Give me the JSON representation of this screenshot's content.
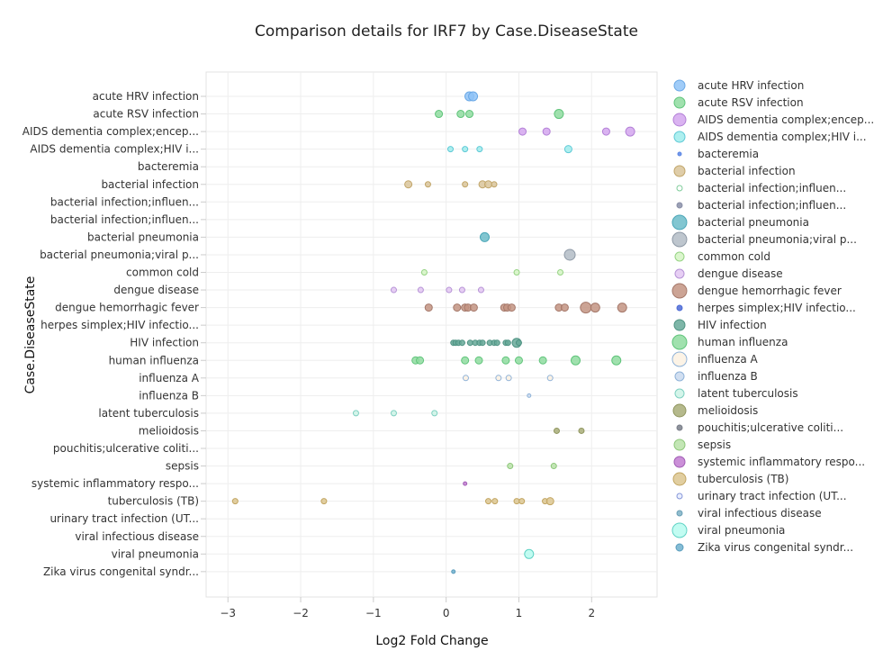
{
  "chart_data": {
    "type": "scatter",
    "title": "Comparison details for IRF7 by Case.DiseaseState",
    "xlabel": "Log2 Fold Change",
    "ylabel": "Case.DiseaseState",
    "xlim": [
      -3.3,
      2.9
    ],
    "xticks": [
      -3,
      -2,
      -1,
      0,
      1,
      2
    ],
    "xtick_labels": [
      "−3",
      "−2",
      "−1",
      "0",
      "1",
      "2"
    ],
    "grid": true,
    "legend_position": "right",
    "categories": [
      "acute HRV infection",
      "acute RSV infection",
      "AIDS dementia complex;encep...",
      "AIDS dementia complex;HIV i...",
      "bacteremia",
      "bacterial infection",
      "bacterial infection;influen...",
      "bacterial infection;influen...",
      "bacterial pneumonia",
      "bacterial pneumonia;viral p...",
      "common cold",
      "dengue disease",
      "dengue hemorrhagic fever",
      "herpes simplex;HIV infectio...",
      "HIV infection",
      "human influenza",
      "influenza A",
      "influenza B",
      "latent tuberculosis",
      "melioidosis",
      "pouchitis;ulcerative coliti...",
      "sepsis",
      "systemic inflammatory respo...",
      "tuberculosis (TB)",
      "urinary tract infection (UT...",
      "viral infectious disease",
      "viral pneumonia",
      "Zika virus congenital syndr..."
    ],
    "series": [
      {
        "name": "acute HRV infection",
        "color": "#8fc3f7",
        "stroke": "#6aa8e6",
        "size": 5,
        "points": [
          {
            "x": 0.32,
            "y": 0
          },
          {
            "x": 0.37,
            "y": 0
          }
        ]
      },
      {
        "name": "acute RSV infection",
        "color": "#8fdca0",
        "stroke": "#5fc47a",
        "size": 4,
        "points": [
          {
            "x": -0.1,
            "y": 1
          },
          {
            "x": 0.2,
            "y": 1
          },
          {
            "x": 0.32,
            "y": 1
          },
          {
            "x": 1.55,
            "y": 1,
            "s": 5
          }
        ]
      },
      {
        "name": "AIDS dementia complex;encep...",
        "color": "#d4a6ef",
        "stroke": "#b27fd6",
        "size": 4,
        "points": [
          {
            "x": 1.05,
            "y": 2
          },
          {
            "x": 1.38,
            "y": 2
          },
          {
            "x": 2.2,
            "y": 2
          },
          {
            "x": 2.53,
            "y": 2,
            "s": 5
          }
        ]
      },
      {
        "name": "AIDS dementia complex;HIV i...",
        "color": "#9fecec",
        "stroke": "#5fc9d6",
        "size": 3,
        "points": [
          {
            "x": 0.06,
            "y": 3
          },
          {
            "x": 0.26,
            "y": 3
          },
          {
            "x": 0.46,
            "y": 3
          },
          {
            "x": 1.68,
            "y": 3,
            "s": 4
          }
        ]
      },
      {
        "name": "bacteremia",
        "color": "#5b86e5",
        "stroke": "#5b86e5",
        "size": 3,
        "points": []
      },
      {
        "name": "bacterial infection",
        "color": "#d9c49a",
        "stroke": "#c1a568",
        "size": 3,
        "points": [
          {
            "x": -0.52,
            "y": 5,
            "s": 4
          },
          {
            "x": -0.25,
            "y": 5
          },
          {
            "x": 0.26,
            "y": 5
          },
          {
            "x": 0.5,
            "y": 5,
            "s": 4
          },
          {
            "x": 0.58,
            "y": 5,
            "s": 4
          },
          {
            "x": 0.66,
            "y": 5
          }
        ]
      },
      {
        "name": "bacterial infection;influen...",
        "color": "#ffffff",
        "stroke": "#7fcc9a",
        "size": 3,
        "points": []
      },
      {
        "name": "bacterial infection;influen...",
        "color": "#8a8fa8",
        "stroke": "#8a8fa8",
        "size": 3,
        "points": []
      },
      {
        "name": "bacterial pneumonia",
        "color": "#6cbcc9",
        "stroke": "#4aa6b7",
        "size": 5,
        "points": [
          {
            "x": 0.53,
            "y": 8
          }
        ]
      },
      {
        "name": "bacterial pneumonia;viral p...",
        "color": "#b3bcc6",
        "stroke": "#8d98a5",
        "size": 6,
        "points": [
          {
            "x": 1.7,
            "y": 9
          }
        ]
      },
      {
        "name": "common cold",
        "color": "#d5f4c4",
        "stroke": "#96d384",
        "size": 3,
        "points": [
          {
            "x": -0.3,
            "y": 10
          },
          {
            "x": 0.97,
            "y": 10
          },
          {
            "x": 1.57,
            "y": 10
          }
        ]
      },
      {
        "name": "dengue disease",
        "color": "#e3c7f2",
        "stroke": "#b693d6",
        "size": 3,
        "points": [
          {
            "x": -0.72,
            "y": 11
          },
          {
            "x": -0.35,
            "y": 11
          },
          {
            "x": 0.04,
            "y": 11
          },
          {
            "x": 0.22,
            "y": 11
          },
          {
            "x": 0.48,
            "y": 11
          }
        ]
      },
      {
        "name": "dengue hemorrhagic fever",
        "color": "#c39482",
        "stroke": "#a5786a",
        "size": 4,
        "points": [
          {
            "x": -0.24,
            "y": 12
          },
          {
            "x": 0.15,
            "y": 12
          },
          {
            "x": 0.26,
            "y": 12
          },
          {
            "x": 0.3,
            "y": 12
          },
          {
            "x": 0.38,
            "y": 12
          },
          {
            "x": 0.8,
            "y": 12
          },
          {
            "x": 0.84,
            "y": 12
          },
          {
            "x": 0.9,
            "y": 12
          },
          {
            "x": 1.55,
            "y": 12
          },
          {
            "x": 1.63,
            "y": 12
          },
          {
            "x": 1.92,
            "y": 12,
            "s": 6
          },
          {
            "x": 2.05,
            "y": 12,
            "s": 5
          },
          {
            "x": 2.42,
            "y": 12,
            "s": 5
          }
        ]
      },
      {
        "name": "herpes simplex;HIV infectio...",
        "color": "#4d6bd6",
        "stroke": "#4d6bd6",
        "size": 2,
        "points": []
      },
      {
        "name": "HIV infection",
        "color": "#67a999",
        "stroke": "#4f9383",
        "size": 3,
        "points": [
          {
            "x": 0.1,
            "y": 14
          },
          {
            "x": 0.13,
            "y": 14
          },
          {
            "x": 0.17,
            "y": 14
          },
          {
            "x": 0.22,
            "y": 14
          },
          {
            "x": 0.33,
            "y": 14
          },
          {
            "x": 0.4,
            "y": 14
          },
          {
            "x": 0.46,
            "y": 14
          },
          {
            "x": 0.5,
            "y": 14
          },
          {
            "x": 0.6,
            "y": 14
          },
          {
            "x": 0.66,
            "y": 14
          },
          {
            "x": 0.7,
            "y": 14
          },
          {
            "x": 0.82,
            "y": 14
          },
          {
            "x": 0.85,
            "y": 14
          },
          {
            "x": 0.97,
            "y": 14,
            "s": 5
          },
          {
            "x": 1.0,
            "y": 14
          }
        ]
      },
      {
        "name": "human influenza",
        "color": "#8fdca0",
        "stroke": "#5fc47a",
        "size": 4,
        "points": [
          {
            "x": -0.42,
            "y": 15
          },
          {
            "x": -0.36,
            "y": 15
          },
          {
            "x": 0.26,
            "y": 15
          },
          {
            "x": 0.45,
            "y": 15
          },
          {
            "x": 0.82,
            "y": 15
          },
          {
            "x": 1.0,
            "y": 15
          },
          {
            "x": 1.33,
            "y": 15
          },
          {
            "x": 1.78,
            "y": 15,
            "s": 5
          },
          {
            "x": 2.34,
            "y": 15,
            "s": 5
          }
        ]
      },
      {
        "name": "influenza A",
        "color": "#fbf1e2",
        "stroke": "#8fb2d8",
        "size": 3,
        "points": [
          {
            "x": 0.27,
            "y": 16
          },
          {
            "x": 0.72,
            "y": 16
          },
          {
            "x": 0.86,
            "y": 16
          },
          {
            "x": 1.43,
            "y": 16
          }
        ]
      },
      {
        "name": "influenza B",
        "color": "#c9d9ee",
        "stroke": "#8fb2d8",
        "size": 2,
        "points": [
          {
            "x": 1.14,
            "y": 17
          }
        ]
      },
      {
        "name": "latent tuberculosis",
        "color": "#cdf3e6",
        "stroke": "#7fd0c1",
        "size": 3,
        "points": [
          {
            "x": -1.24,
            "y": 18
          },
          {
            "x": -0.72,
            "y": 18
          },
          {
            "x": -0.16,
            "y": 18
          }
        ]
      },
      {
        "name": "melioidosis",
        "color": "#a8ad78",
        "stroke": "#8f955e",
        "size": 3,
        "points": [
          {
            "x": 1.52,
            "y": 19
          },
          {
            "x": 1.86,
            "y": 19
          }
        ]
      },
      {
        "name": "pouchitis;ulcerative coliti...",
        "color": "#7a7f8a",
        "stroke": "#7a7f8a",
        "size": 2,
        "points": []
      },
      {
        "name": "sepsis",
        "color": "#b9e2a8",
        "stroke": "#8cc679",
        "size": 3,
        "points": [
          {
            "x": 0.88,
            "y": 21
          },
          {
            "x": 1.48,
            "y": 21
          }
        ]
      },
      {
        "name": "systemic inflammatory respo...",
        "color": "#c27dd1",
        "stroke": "#a15db5",
        "size": 2,
        "points": [
          {
            "x": 0.26,
            "y": 22
          }
        ]
      },
      {
        "name": "tuberculosis (TB)",
        "color": "#dcc58f",
        "stroke": "#c2a561",
        "size": 3,
        "points": [
          {
            "x": -2.9,
            "y": 23
          },
          {
            "x": -1.68,
            "y": 23
          },
          {
            "x": 0.58,
            "y": 23
          },
          {
            "x": 0.67,
            "y": 23
          },
          {
            "x": 0.97,
            "y": 23
          },
          {
            "x": 1.04,
            "y": 23
          },
          {
            "x": 1.36,
            "y": 23
          },
          {
            "x": 1.43,
            "y": 23,
            "s": 4
          }
        ]
      },
      {
        "name": "urinary tract infection (UT...",
        "color": "#e6ecff",
        "stroke": "#8596d8",
        "size": 3,
        "points": []
      },
      {
        "name": "viral infectious disease",
        "color": "#7fb1c6",
        "stroke": "#6a9fb6",
        "size": 3,
        "points": []
      },
      {
        "name": "viral pneumonia",
        "color": "#b7fbf0",
        "stroke": "#5fd2c4",
        "size": 5,
        "points": [
          {
            "x": 1.14,
            "y": 26
          }
        ]
      },
      {
        "name": "Zika virus congenital syndr...",
        "color": "#6fb0ce",
        "stroke": "#5a9cbc",
        "size": 2,
        "points": [
          {
            "x": 0.1,
            "y": 27
          }
        ]
      }
    ],
    "legend_sizes": [
      6,
      6,
      7,
      6,
      2,
      6,
      3,
      3,
      8,
      8,
      5,
      5,
      8,
      3,
      6,
      8,
      8,
      5,
      5,
      7,
      3,
      6,
      6,
      7,
      3,
      3,
      8,
      4
    ]
  }
}
